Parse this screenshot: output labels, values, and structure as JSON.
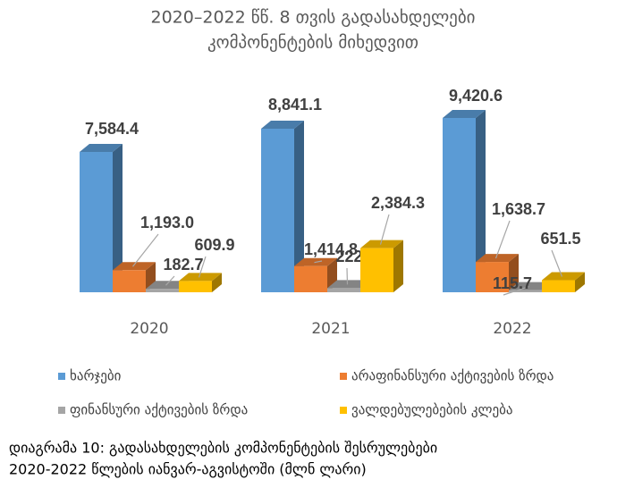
{
  "chart_data": {
    "type": "bar3d",
    "title": [
      "2020–2022 წწ. 8 თვის გადასახდელები",
      "კომპონენტების მიხედვით"
    ],
    "categories": [
      "2020",
      "2021",
      "2022"
    ],
    "series": [
      {
        "name": "ხარჯები",
        "color": "#5b9bd5",
        "values": [
          7584.4,
          8841.1,
          9420.6
        ],
        "value_labels": [
          "7,584.4",
          "8,841.1",
          "9,420.6"
        ]
      },
      {
        "name": "არაფინანსური აქტივების ზრდა",
        "color": "#ed7d31",
        "values": [
          1193.0,
          1414.8,
          1638.7
        ],
        "value_labels": [
          "1,193.0",
          "1,414.8",
          "1,638.7"
        ]
      },
      {
        "name": "ფინანსური აქტივების ზრდა",
        "color": "#a5a5a5",
        "values": [
          182.7,
          222.2,
          115.7
        ],
        "value_labels": [
          "182.7",
          "222.2",
          "115.7"
        ]
      },
      {
        "name": "ვალდებულებების კლება",
        "color": "#ffc000",
        "values": [
          609.9,
          2384.3,
          651.5
        ],
        "value_labels": [
          "609.9",
          "2,384.3",
          "651.5"
        ]
      }
    ],
    "legend": "bottom",
    "caption": [
      "დიაგრამა 10: გადასახდელების კომპონენტების შესრულებები",
      "2020-2022 წლების იანვარ-აგვისტოში (მლნ ლარი)"
    ]
  }
}
